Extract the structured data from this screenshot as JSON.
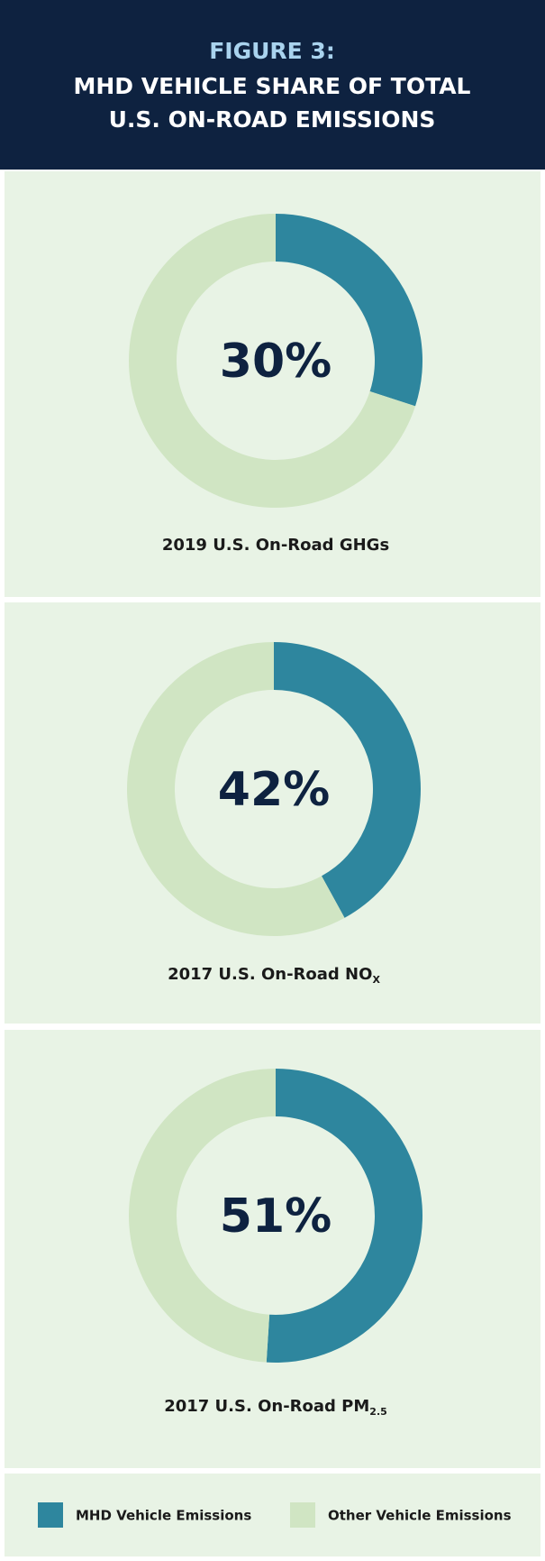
{
  "header": {
    "figure": "FIGURE 3:",
    "title": [
      "MHD VEHICLE SHARE OF TOTAL",
      "U.S. ON-ROAD EMISSIONS"
    ]
  },
  "chart_data": [
    {
      "type": "donut",
      "title": "2019 U.S. On-Road GHGs",
      "categories": [
        "MHD Vehicle Emissions",
        "Other Vehicle Emissions"
      ],
      "values": [
        30,
        70
      ],
      "value_labels": [
        "30%",
        null
      ],
      "colors": [
        "#2e869e",
        "#d0e5c3"
      ]
    },
    {
      "type": "donut",
      "title": "2017 U.S. On-Road NO",
      "title_subscript": "X",
      "categories": [
        "MHD Vehicle Emissions",
        "Other Vehicle Emissions"
      ],
      "values": [
        42,
        58
      ],
      "value_labels": [
        "42%",
        null
      ],
      "colors": [
        "#2e869e",
        "#d0e5c3"
      ]
    },
    {
      "type": "donut",
      "title": "2017 U.S. On-Road PM",
      "title_subscript": "2.5",
      "categories": [
        "MHD Vehicle Emissions",
        "Other Vehicle Emissions"
      ],
      "values": [
        51,
        49
      ],
      "value_labels": [
        "51%",
        null
      ],
      "colors": [
        "#2e869e",
        "#d0e5c3"
      ]
    }
  ]
}
